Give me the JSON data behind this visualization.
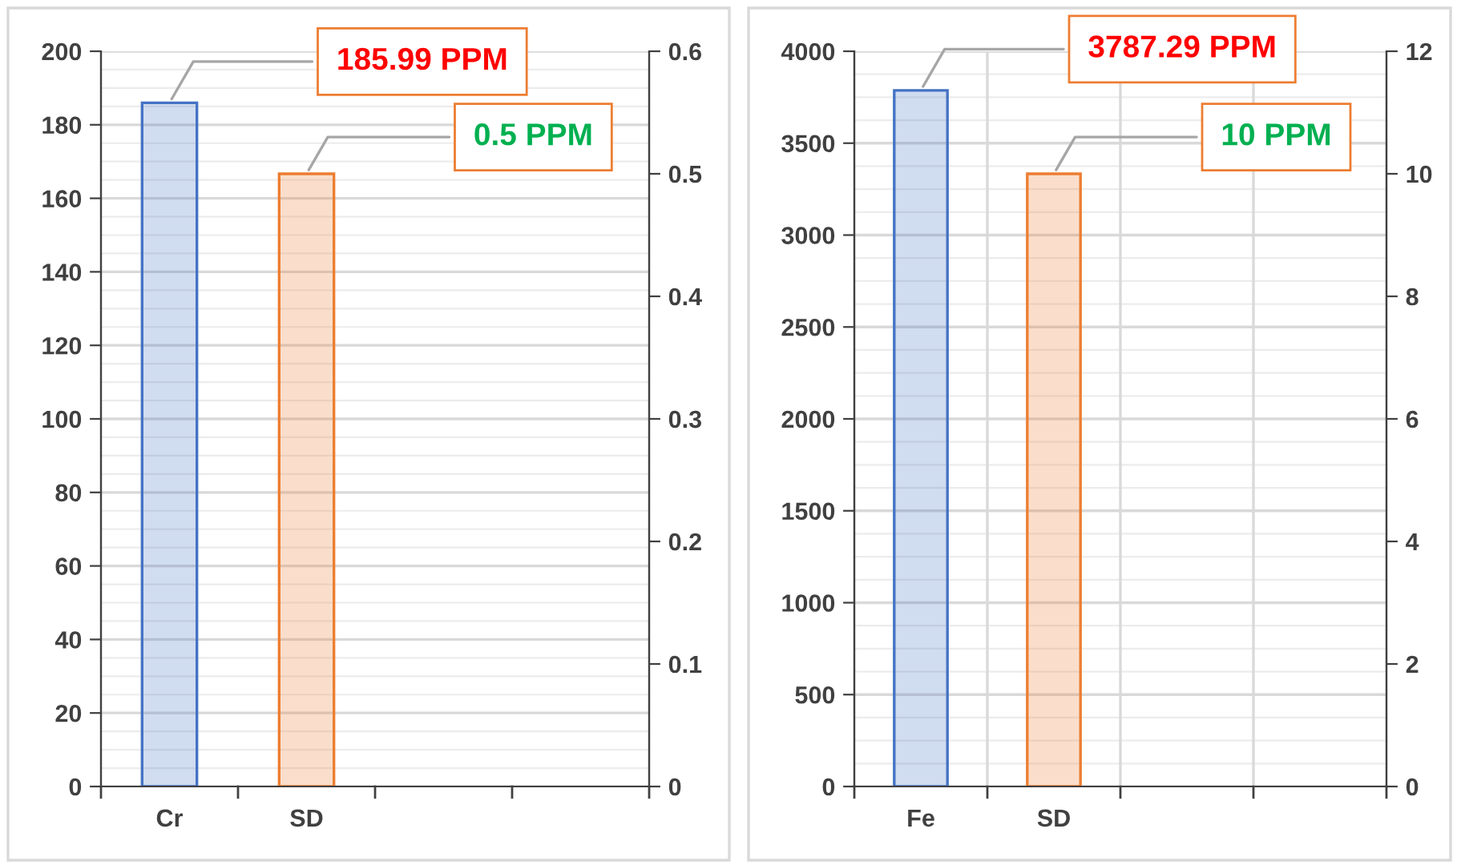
{
  "chart_data": [
    {
      "type": "bar",
      "categories": [
        "Cr",
        "SD",
        null,
        null
      ],
      "series": [
        {
          "color": "#4472c4",
          "values": [
            185.99,
            null,
            null,
            null
          ],
          "value_labels": [
            "185.99 PPM",
            null,
            null,
            null
          ]
        },
        {
          "color": "#ed7d31",
          "axis": "y2",
          "values": [
            null,
            0.5,
            null,
            null
          ],
          "value_labels": [
            null,
            "0.5 PPM",
            null,
            null
          ]
        }
      ],
      "ylim": [
        0,
        200
      ],
      "yticks": [
        0,
        20,
        40,
        60,
        80,
        100,
        120,
        140,
        160,
        180,
        200
      ],
      "y2lim": [
        0,
        0.6
      ],
      "y2ticks": [
        0,
        0.1,
        0.2,
        0.3,
        0.4,
        0.5,
        0.6
      ],
      "grid": "y"
    },
    {
      "type": "bar",
      "categories": [
        "Fe",
        "SD",
        null,
        null
      ],
      "series": [
        {
          "color": "#4472c4",
          "values": [
            3787.29,
            null,
            null,
            null
          ],
          "value_labels": [
            "3787.29 PPM",
            null,
            null,
            null
          ]
        },
        {
          "color": "#ed7d31",
          "axis": "y2",
          "values": [
            null,
            10,
            null,
            null
          ],
          "value_labels": [
            null,
            "10 PPM",
            null,
            null
          ]
        }
      ],
      "ylim": [
        0,
        4000
      ],
      "yticks": [
        0,
        500,
        1000,
        1500,
        2000,
        2500,
        3000,
        3500,
        4000
      ],
      "y2lim": [
        0,
        12
      ],
      "y2ticks": [
        0,
        2,
        4,
        6,
        8,
        10,
        12
      ],
      "grid": true
    }
  ]
}
